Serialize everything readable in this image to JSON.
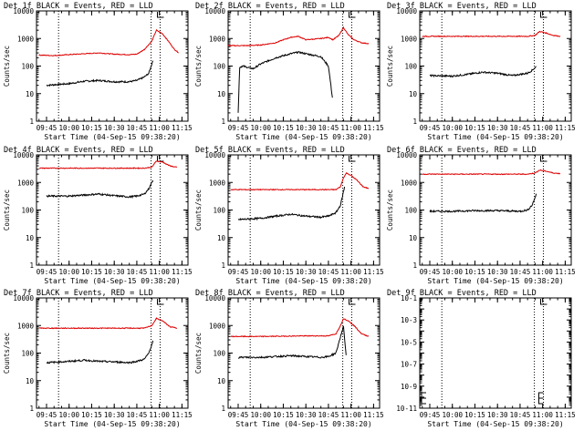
{
  "colors": {
    "events": "#000000",
    "lld": "#dd0000",
    "axis": "#000000"
  },
  "xlabel": "Start Time (04-Sep-15 09:38:20)",
  "ylabel": "Counts/sec",
  "chart_data": [
    {
      "type": "line",
      "title": "Det 1f BLACK = Events, RED = LLD",
      "xlabel": "Start Time (04-Sep-15 09:38:20)",
      "ylabel": "Counts/sec",
      "y_scale": "log",
      "ylim": [
        1,
        10000
      ],
      "y_ticks": [
        "1",
        "10",
        "100",
        "1000",
        "10000"
      ],
      "x_ticks": [
        "09:45",
        "10:00",
        "10:15",
        "10:30",
        "10:45",
        "11:00",
        "11:15"
      ],
      "series": [
        {
          "name": "Events",
          "color": "#000000",
          "x": [
            "09:45",
            "09:50",
            "10:00",
            "10:10",
            "10:20",
            "10:30",
            "10:40",
            "10:45",
            "10:50",
            "10:53",
            "10:55",
            "10:56"
          ],
          "y": [
            20,
            21,
            23,
            28,
            30,
            27,
            27,
            30,
            40,
            55,
            120,
            180
          ]
        },
        {
          "name": "LLD",
          "color": "#dd0000",
          "x": [
            "09:40",
            "09:50",
            "10:00",
            "10:10",
            "10:20",
            "10:30",
            "10:40",
            "10:45",
            "10:50",
            "10:55",
            "10:58",
            "11:02",
            "11:06",
            "11:10",
            "11:13"
          ],
          "y": [
            250,
            240,
            260,
            280,
            300,
            270,
            260,
            270,
            400,
            800,
            2000,
            1500,
            800,
            400,
            300
          ]
        }
      ]
    },
    {
      "type": "line",
      "title": "Det 2f BLACK = Events, RED = LLD",
      "xlabel": "Start Time (04-Sep-15 09:38:20)",
      "ylabel": "Counts/sec",
      "y_scale": "log",
      "ylim": [
        1,
        10000
      ],
      "y_ticks": [
        "1",
        "10",
        "100",
        "1000",
        "10000"
      ],
      "x_ticks": [
        "09:45",
        "10:00",
        "10:15",
        "10:30",
        "10:45",
        "11:00",
        "11:15"
      ],
      "series": [
        {
          "name": "Events",
          "color": "#000000",
          "x": [
            "09:45",
            "09:46",
            "09:48",
            "09:55",
            "10:00",
            "10:10",
            "10:20",
            "10:25",
            "10:30",
            "10:40",
            "10:45",
            "10:48"
          ],
          "y": [
            2,
            90,
            100,
            80,
            120,
            200,
            280,
            320,
            280,
            220,
            100,
            5
          ]
        },
        {
          "name": "LLD",
          "color": "#dd0000",
          "x": [
            "09:38",
            "09:50",
            "10:00",
            "10:10",
            "10:15",
            "10:20",
            "10:25",
            "10:30",
            "10:40",
            "10:45",
            "10:48",
            "10:52",
            "10:55",
            "10:58",
            "11:02",
            "11:07",
            "11:12"
          ],
          "y": [
            550,
            550,
            580,
            700,
            900,
            1100,
            1200,
            900,
            1000,
            1100,
            900,
            1300,
            2500,
            1400,
            900,
            700,
            650
          ]
        }
      ]
    },
    {
      "type": "line",
      "title": "Det 3f BLACK = Events, RED = LLD",
      "xlabel": "Start Time (04-Sep-15 09:38:20)",
      "ylabel": "Counts/sec",
      "y_scale": "log",
      "ylim": [
        1,
        10000
      ],
      "y_ticks": [
        "1",
        "10",
        "100",
        "1000",
        "10000"
      ],
      "x_ticks": [
        "09:45",
        "10:00",
        "10:15",
        "10:30",
        "10:45",
        "11:00",
        "11:15"
      ],
      "series": [
        {
          "name": "Events",
          "color": "#000000",
          "x": [
            "09:45",
            "10:00",
            "10:10",
            "10:20",
            "10:30",
            "10:40",
            "10:45",
            "10:50",
            "10:53",
            "10:56"
          ],
          "y": [
            45,
            43,
            50,
            60,
            55,
            45,
            50,
            55,
            70,
            100
          ]
        },
        {
          "name": "LLD",
          "color": "#dd0000",
          "x": [
            "09:40",
            "10:00",
            "10:30",
            "10:50",
            "10:55",
            "10:58",
            "11:02",
            "11:07",
            "11:12"
          ],
          "y": [
            1200,
            1200,
            1200,
            1200,
            1300,
            1800,
            1600,
            1300,
            1200
          ]
        }
      ]
    },
    {
      "type": "line",
      "title": "Det 4f BLACK = Events, RED = LLD",
      "xlabel": "Start Time (04-Sep-15 09:38:20)",
      "ylabel": "Counts/sec",
      "y_scale": "log",
      "ylim": [
        1,
        10000
      ],
      "y_ticks": [
        "1",
        "10",
        "100",
        "1000",
        "10000"
      ],
      "x_ticks": [
        "09:45",
        "10:00",
        "10:15",
        "10:30",
        "10:45",
        "11:00",
        "11:15"
      ],
      "series": [
        {
          "name": "Events",
          "color": "#000000",
          "x": [
            "09:45",
            "10:00",
            "10:10",
            "10:20",
            "10:30",
            "10:40",
            "10:45",
            "10:50",
            "10:53",
            "10:56"
          ],
          "y": [
            320,
            320,
            350,
            380,
            330,
            300,
            320,
            380,
            600,
            1300
          ]
        },
        {
          "name": "LLD",
          "color": "#dd0000",
          "x": [
            "09:40",
            "10:00",
            "10:30",
            "10:50",
            "10:55",
            "10:58",
            "11:02",
            "11:07",
            "11:12"
          ],
          "y": [
            3300,
            3300,
            3300,
            3300,
            3600,
            6000,
            5500,
            4000,
            3500
          ]
        }
      ]
    },
    {
      "type": "line",
      "title": "Det 5f BLACK = Events, RED = LLD",
      "xlabel": "Start Time (04-Sep-15 09:38:20)",
      "ylabel": "Counts/sec",
      "y_scale": "log",
      "ylim": [
        1,
        10000
      ],
      "y_ticks": [
        "1",
        "10",
        "100",
        "1000",
        "10000"
      ],
      "x_ticks": [
        "09:45",
        "10:00",
        "10:15",
        "10:30",
        "10:45",
        "11:00",
        "11:15"
      ],
      "series": [
        {
          "name": "Events",
          "color": "#000000",
          "x": [
            "09:45",
            "10:00",
            "10:10",
            "10:20",
            "10:30",
            "10:40",
            "10:45",
            "10:50",
            "10:53",
            "10:56"
          ],
          "y": [
            45,
            50,
            60,
            70,
            60,
            55,
            60,
            80,
            150,
            800
          ]
        },
        {
          "name": "LLD",
          "color": "#dd0000",
          "x": [
            "09:40",
            "10:00",
            "10:30",
            "10:50",
            "10:53",
            "10:55",
            "10:57",
            "11:00",
            "11:04",
            "11:08",
            "11:12"
          ],
          "y": [
            550,
            550,
            550,
            550,
            700,
            1500,
            2200,
            1800,
            1200,
            700,
            600
          ]
        }
      ]
    },
    {
      "type": "line",
      "title": "Det 6f BLACK = Events, RED = LLD",
      "xlabel": "Start Time (04-Sep-15 09:38:20)",
      "ylabel": "Counts/sec",
      "y_scale": "log",
      "ylim": [
        1,
        10000
      ],
      "y_ticks": [
        "1",
        "10",
        "100",
        "1000",
        "10000"
      ],
      "x_ticks": [
        "09:45",
        "10:00",
        "10:15",
        "10:30",
        "10:45",
        "11:00",
        "11:15"
      ],
      "series": [
        {
          "name": "Events",
          "color": "#000000",
          "x": [
            "09:45",
            "10:00",
            "10:15",
            "10:30",
            "10:45",
            "10:50",
            "10:53",
            "10:56"
          ],
          "y": [
            90,
            90,
            95,
            95,
            90,
            100,
            150,
            400
          ]
        },
        {
          "name": "LLD",
          "color": "#dd0000",
          "x": [
            "09:40",
            "10:00",
            "10:30",
            "10:50",
            "10:55",
            "10:58",
            "11:02",
            "11:07",
            "11:12"
          ],
          "y": [
            2000,
            2000,
            2000,
            2000,
            2200,
            2800,
            2600,
            2200,
            2100
          ]
        }
      ]
    },
    {
      "type": "line",
      "title": "Det 7f BLACK = Events, RED = LLD",
      "xlabel": "Start Time (04-Sep-15 09:38:20)",
      "ylabel": "Counts/sec",
      "y_scale": "log",
      "ylim": [
        1,
        10000
      ],
      "y_ticks": [
        "1",
        "10",
        "100",
        "1000",
        "10000"
      ],
      "x_ticks": [
        "09:45",
        "10:00",
        "10:15",
        "10:30",
        "10:45",
        "11:00",
        "11:15"
      ],
      "series": [
        {
          "name": "Events",
          "color": "#000000",
          "x": [
            "09:45",
            "10:00",
            "10:10",
            "10:20",
            "10:30",
            "10:40",
            "10:45",
            "10:50",
            "10:53",
            "10:56"
          ],
          "y": [
            45,
            50,
            55,
            50,
            48,
            45,
            50,
            60,
            100,
            300
          ]
        },
        {
          "name": "LLD",
          "color": "#dd0000",
          "x": [
            "09:40",
            "10:00",
            "10:30",
            "10:50",
            "10:55",
            "10:58",
            "11:02",
            "11:07",
            "11:12"
          ],
          "y": [
            800,
            800,
            800,
            800,
            1000,
            1800,
            1500,
            900,
            800
          ]
        }
      ]
    },
    {
      "type": "line",
      "title": "Det 8f BLACK = Events, RED = LLD",
      "xlabel": "Start Time (04-Sep-15 09:38:20)",
      "ylabel": "Counts/sec",
      "y_scale": "log",
      "ylim": [
        1,
        10000
      ],
      "y_ticks": [
        "1",
        "10",
        "100",
        "1000",
        "10000"
      ],
      "x_ticks": [
        "09:45",
        "10:00",
        "10:15",
        "10:30",
        "10:45",
        "11:00",
        "11:15"
      ],
      "series": [
        {
          "name": "Events",
          "color": "#000000",
          "x": [
            "09:45",
            "10:00",
            "10:10",
            "10:20",
            "10:30",
            "10:40",
            "10:45",
            "10:50",
            "10:53",
            "10:55",
            "10:57"
          ],
          "y": [
            70,
            70,
            75,
            80,
            75,
            70,
            75,
            100,
            400,
            900,
            60
          ]
        },
        {
          "name": "LLD",
          "color": "#dd0000",
          "x": [
            "09:40",
            "10:00",
            "10:30",
            "10:45",
            "10:50",
            "10:53",
            "10:55",
            "10:58",
            "11:02",
            "11:07",
            "11:12"
          ],
          "y": [
            400,
            400,
            420,
            420,
            500,
            1000,
            1800,
            1500,
            1000,
            500,
            400
          ]
        }
      ]
    },
    {
      "type": "line",
      "title": "Det 9f BLACK = Events, RED = LLD",
      "xlabel": "Start Time (04-Sep-15 09:38:20)",
      "ylabel": "",
      "y_scale": "log",
      "ylim": [
        1e-11,
        0.1
      ],
      "y_ticks": [
        "10-11",
        "10-9",
        "10-7",
        "10-5",
        "10-3",
        "10-1"
      ],
      "x_ticks": [
        "09:45",
        "10:00",
        "10:15",
        "10:30",
        "10:45",
        "11:00",
        "11:15"
      ],
      "series": []
    }
  ]
}
